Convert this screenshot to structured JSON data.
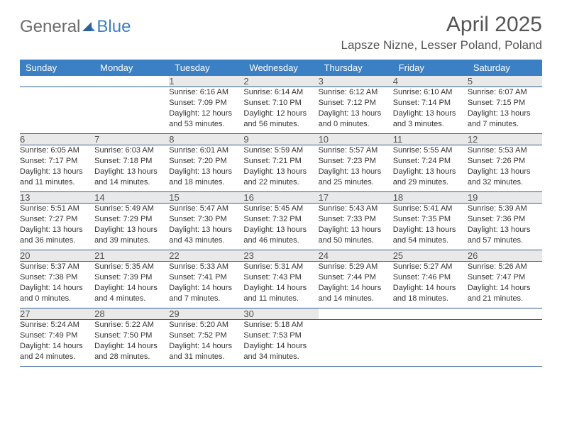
{
  "logo": {
    "general": "General",
    "blue": "Blue"
  },
  "title": "April 2025",
  "location": "Lapsze Nizne, Lesser Poland, Poland",
  "colors": {
    "header_bg": "#3b7fc4",
    "header_text": "#ffffff",
    "daynum_bg": "#e9e9e9",
    "border": "#2f5f94",
    "logo_gray": "#6b6b6b",
    "logo_blue": "#3b7fc4"
  },
  "day_headers": [
    "Sunday",
    "Monday",
    "Tuesday",
    "Wednesday",
    "Thursday",
    "Friday",
    "Saturday"
  ],
  "weeks": [
    {
      "nums": [
        "",
        "",
        "1",
        "2",
        "3",
        "4",
        "5"
      ],
      "cells": [
        {},
        {},
        {
          "sunrise": "Sunrise: 6:16 AM",
          "sunset": "Sunset: 7:09 PM",
          "daylight": "Daylight: 12 hours and 53 minutes."
        },
        {
          "sunrise": "Sunrise: 6:14 AM",
          "sunset": "Sunset: 7:10 PM",
          "daylight": "Daylight: 12 hours and 56 minutes."
        },
        {
          "sunrise": "Sunrise: 6:12 AM",
          "sunset": "Sunset: 7:12 PM",
          "daylight": "Daylight: 13 hours and 0 minutes."
        },
        {
          "sunrise": "Sunrise: 6:10 AM",
          "sunset": "Sunset: 7:14 PM",
          "daylight": "Daylight: 13 hours and 3 minutes."
        },
        {
          "sunrise": "Sunrise: 6:07 AM",
          "sunset": "Sunset: 7:15 PM",
          "daylight": "Daylight: 13 hours and 7 minutes."
        }
      ]
    },
    {
      "nums": [
        "6",
        "7",
        "8",
        "9",
        "10",
        "11",
        "12"
      ],
      "cells": [
        {
          "sunrise": "Sunrise: 6:05 AM",
          "sunset": "Sunset: 7:17 PM",
          "daylight": "Daylight: 13 hours and 11 minutes."
        },
        {
          "sunrise": "Sunrise: 6:03 AM",
          "sunset": "Sunset: 7:18 PM",
          "daylight": "Daylight: 13 hours and 14 minutes."
        },
        {
          "sunrise": "Sunrise: 6:01 AM",
          "sunset": "Sunset: 7:20 PM",
          "daylight": "Daylight: 13 hours and 18 minutes."
        },
        {
          "sunrise": "Sunrise: 5:59 AM",
          "sunset": "Sunset: 7:21 PM",
          "daylight": "Daylight: 13 hours and 22 minutes."
        },
        {
          "sunrise": "Sunrise: 5:57 AM",
          "sunset": "Sunset: 7:23 PM",
          "daylight": "Daylight: 13 hours and 25 minutes."
        },
        {
          "sunrise": "Sunrise: 5:55 AM",
          "sunset": "Sunset: 7:24 PM",
          "daylight": "Daylight: 13 hours and 29 minutes."
        },
        {
          "sunrise": "Sunrise: 5:53 AM",
          "sunset": "Sunset: 7:26 PM",
          "daylight": "Daylight: 13 hours and 32 minutes."
        }
      ]
    },
    {
      "nums": [
        "13",
        "14",
        "15",
        "16",
        "17",
        "18",
        "19"
      ],
      "cells": [
        {
          "sunrise": "Sunrise: 5:51 AM",
          "sunset": "Sunset: 7:27 PM",
          "daylight": "Daylight: 13 hours and 36 minutes."
        },
        {
          "sunrise": "Sunrise: 5:49 AM",
          "sunset": "Sunset: 7:29 PM",
          "daylight": "Daylight: 13 hours and 39 minutes."
        },
        {
          "sunrise": "Sunrise: 5:47 AM",
          "sunset": "Sunset: 7:30 PM",
          "daylight": "Daylight: 13 hours and 43 minutes."
        },
        {
          "sunrise": "Sunrise: 5:45 AM",
          "sunset": "Sunset: 7:32 PM",
          "daylight": "Daylight: 13 hours and 46 minutes."
        },
        {
          "sunrise": "Sunrise: 5:43 AM",
          "sunset": "Sunset: 7:33 PM",
          "daylight": "Daylight: 13 hours and 50 minutes."
        },
        {
          "sunrise": "Sunrise: 5:41 AM",
          "sunset": "Sunset: 7:35 PM",
          "daylight": "Daylight: 13 hours and 54 minutes."
        },
        {
          "sunrise": "Sunrise: 5:39 AM",
          "sunset": "Sunset: 7:36 PM",
          "daylight": "Daylight: 13 hours and 57 minutes."
        }
      ]
    },
    {
      "nums": [
        "20",
        "21",
        "22",
        "23",
        "24",
        "25",
        "26"
      ],
      "cells": [
        {
          "sunrise": "Sunrise: 5:37 AM",
          "sunset": "Sunset: 7:38 PM",
          "daylight": "Daylight: 14 hours and 0 minutes."
        },
        {
          "sunrise": "Sunrise: 5:35 AM",
          "sunset": "Sunset: 7:39 PM",
          "daylight": "Daylight: 14 hours and 4 minutes."
        },
        {
          "sunrise": "Sunrise: 5:33 AM",
          "sunset": "Sunset: 7:41 PM",
          "daylight": "Daylight: 14 hours and 7 minutes."
        },
        {
          "sunrise": "Sunrise: 5:31 AM",
          "sunset": "Sunset: 7:43 PM",
          "daylight": "Daylight: 14 hours and 11 minutes."
        },
        {
          "sunrise": "Sunrise: 5:29 AM",
          "sunset": "Sunset: 7:44 PM",
          "daylight": "Daylight: 14 hours and 14 minutes."
        },
        {
          "sunrise": "Sunrise: 5:27 AM",
          "sunset": "Sunset: 7:46 PM",
          "daylight": "Daylight: 14 hours and 18 minutes."
        },
        {
          "sunrise": "Sunrise: 5:26 AM",
          "sunset": "Sunset: 7:47 PM",
          "daylight": "Daylight: 14 hours and 21 minutes."
        }
      ]
    },
    {
      "nums": [
        "27",
        "28",
        "29",
        "30",
        "",
        "",
        ""
      ],
      "cells": [
        {
          "sunrise": "Sunrise: 5:24 AM",
          "sunset": "Sunset: 7:49 PM",
          "daylight": "Daylight: 14 hours and 24 minutes."
        },
        {
          "sunrise": "Sunrise: 5:22 AM",
          "sunset": "Sunset: 7:50 PM",
          "daylight": "Daylight: 14 hours and 28 minutes."
        },
        {
          "sunrise": "Sunrise: 5:20 AM",
          "sunset": "Sunset: 7:52 PM",
          "daylight": "Daylight: 14 hours and 31 minutes."
        },
        {
          "sunrise": "Sunrise: 5:18 AM",
          "sunset": "Sunset: 7:53 PM",
          "daylight": "Daylight: 14 hours and 34 minutes."
        },
        {},
        {},
        {}
      ]
    }
  ]
}
